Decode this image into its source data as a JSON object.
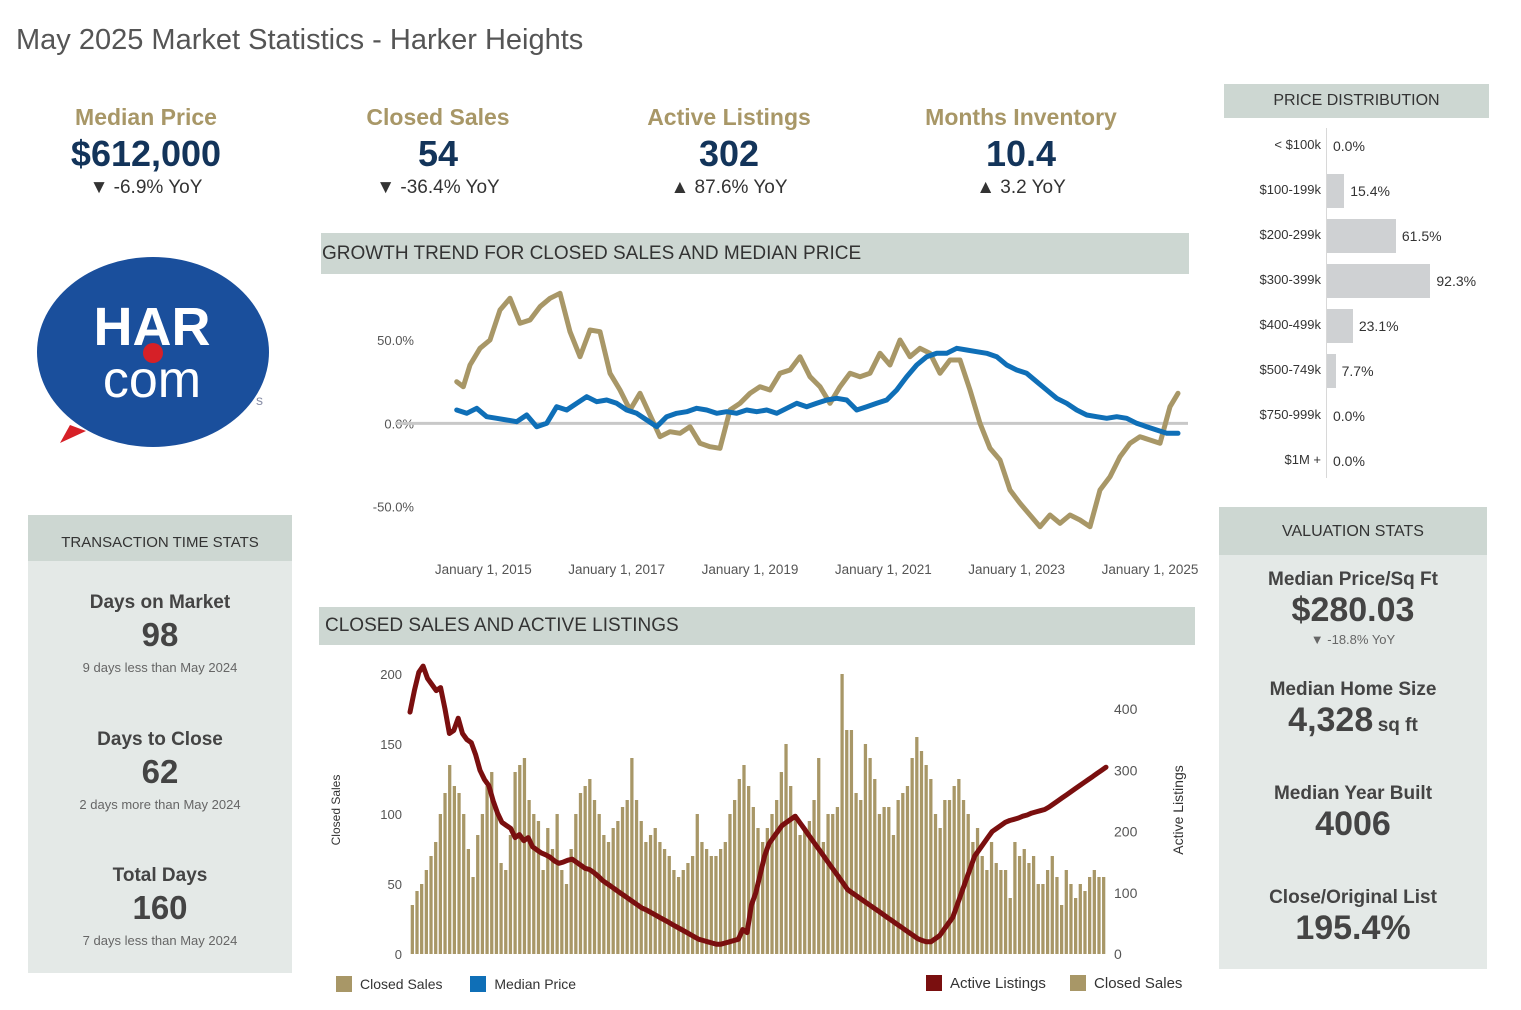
{
  "page_title": "May 2025 Market Statistics - Harker Heights",
  "kpis": [
    {
      "label": "Median Price",
      "value": "$612,000",
      "yoy": "▼ -6.9% YoY"
    },
    {
      "label": "Closed Sales",
      "value": "54",
      "yoy": "▼ -36.4% YoY"
    },
    {
      "label": "Active Listings",
      "value": "302",
      "yoy": "▲ 87.6% YoY"
    },
    {
      "label": "Months Inventory",
      "value": "10.4",
      "yoy": "▲ 3.2 YoY"
    }
  ],
  "logo": {
    "text_top": "HAR",
    "text_bottom": "com",
    "colors": {
      "circle": "#1a4f9c",
      "dot": "#d62027",
      "text": "#ffffff"
    }
  },
  "transaction": {
    "header": "TRANSACTION TIME STATS",
    "items": [
      {
        "label": "Days on Market",
        "value": "98",
        "sub": "9 days less than May 2024"
      },
      {
        "label": "Days to Close",
        "value": "62",
        "sub": "2 days more than May 2024"
      },
      {
        "label": "Total Days",
        "value": "160",
        "sub": "7 days less than May 2024"
      }
    ]
  },
  "price_distribution": {
    "header": "PRICE DISTRIBUTION",
    "rows": [
      {
        "label": "< $100k",
        "pct": "0.0%",
        "value": 0.0
      },
      {
        "label": "$100-199k",
        "pct": "15.4%",
        "value": 15.4
      },
      {
        "label": "$200-299k",
        "pct": "61.5%",
        "value": 61.5
      },
      {
        "label": "$300-399k",
        "pct": "92.3%",
        "value": 92.3
      },
      {
        "label": "$400-499k",
        "pct": "23.1%",
        "value": 23.1
      },
      {
        "label": "$500-749k",
        "pct": "7.7%",
        "value": 7.7
      },
      {
        "label": "$750-999k",
        "pct": "0.0%",
        "value": 0.0
      },
      {
        "label": "$1M +",
        "pct": "0.0%",
        "value": 0.0
      }
    ]
  },
  "valuation": {
    "header": "VALUATION STATS",
    "price_sqft_label": "Median Price/Sq Ft",
    "price_sqft_value": "$280.03",
    "price_sqft_yoy": "▼ -18.8% YoY",
    "home_size_label": "Median Home Size",
    "home_size_value": "4,328",
    "home_size_unit": "sq ft",
    "year_built_label": "Median Year Built",
    "year_built_value": "4006",
    "close_list_label": "Close/Original List",
    "close_list_value": "195.4%"
  },
  "chart_data": [
    {
      "type": "line",
      "title": "GROWTH TREND FOR CLOSED SALES AND MEDIAN PRICE",
      "x_tick_labels": [
        "January 1, 2015",
        "January 1, 2017",
        "January 1, 2019",
        "January 1, 2021",
        "January 1, 2023",
        "January 1, 2025"
      ],
      "y_tick_labels": [
        "50.0%",
        "0.0%",
        "-50.0%"
      ],
      "y_ticks": [
        50,
        0,
        -50
      ],
      "ylim": [
        -70,
        80
      ],
      "xlim": [
        2013.9,
        2025.6
      ],
      "legend": [
        {
          "name": "Closed Sales",
          "color": "#a89767"
        },
        {
          "name": "Median Price",
          "color": "#0f6fb7"
        }
      ],
      "series": [
        {
          "name": "Closed Sales",
          "color": "#a89767",
          "x": [
            2014.6,
            2014.7,
            2014.8,
            2014.95,
            2015.1,
            2015.25,
            2015.4,
            2015.55,
            2015.7,
            2015.85,
            2016.0,
            2016.15,
            2016.3,
            2016.45,
            2016.6,
            2016.75,
            2016.9,
            2017.05,
            2017.2,
            2017.35,
            2017.5,
            2017.65,
            2017.8,
            2017.95,
            2018.1,
            2018.25,
            2018.4,
            2018.55,
            2018.7,
            2018.85,
            2019.0,
            2019.15,
            2019.3,
            2019.45,
            2019.6,
            2019.75,
            2019.9,
            2020.05,
            2020.2,
            2020.35,
            2020.5,
            2020.65,
            2020.8,
            2020.95,
            2021.1,
            2021.25,
            2021.4,
            2021.55,
            2021.7,
            2021.85,
            2022.0,
            2022.15,
            2022.3,
            2022.45,
            2022.6,
            2022.75,
            2022.9,
            2023.05,
            2023.2,
            2023.35,
            2023.5,
            2023.65,
            2023.8,
            2023.95,
            2024.1,
            2024.25,
            2024.4,
            2024.55,
            2024.7,
            2024.85,
            2025.0,
            2025.15,
            2025.3,
            2025.42
          ],
          "y": [
            25,
            22,
            35,
            45,
            50,
            68,
            75,
            60,
            62,
            70,
            75,
            78,
            55,
            40,
            56,
            55,
            30,
            20,
            8,
            18,
            5,
            -8,
            -5,
            -6,
            -2,
            -12,
            -14,
            -15,
            8,
            12,
            18,
            22,
            20,
            30,
            32,
            40,
            28,
            22,
            12,
            22,
            30,
            28,
            30,
            42,
            35,
            50,
            40,
            45,
            42,
            30,
            38,
            38,
            20,
            0,
            -15,
            -22,
            -40,
            -48,
            -55,
            -62,
            -55,
            -60,
            -55,
            -58,
            -62,
            -40,
            -32,
            -20,
            -12,
            -8,
            -10,
            -12,
            10,
            18
          ]
        },
        {
          "name": "Median Price",
          "color": "#0f6fb7",
          "x": [
            2014.6,
            2014.75,
            2014.9,
            2015.05,
            2015.2,
            2015.35,
            2015.5,
            2015.65,
            2015.8,
            2015.95,
            2016.1,
            2016.25,
            2016.4,
            2016.55,
            2016.7,
            2016.85,
            2017.0,
            2017.15,
            2017.3,
            2017.45,
            2017.6,
            2017.75,
            2017.9,
            2018.05,
            2018.2,
            2018.35,
            2018.5,
            2018.65,
            2018.8,
            2018.95,
            2019.1,
            2019.25,
            2019.4,
            2019.55,
            2019.7,
            2019.85,
            2020.0,
            2020.15,
            2020.3,
            2020.45,
            2020.6,
            2020.75,
            2020.9,
            2021.05,
            2021.2,
            2021.35,
            2021.5,
            2021.65,
            2021.8,
            2021.95,
            2022.1,
            2022.25,
            2022.4,
            2022.55,
            2022.7,
            2022.85,
            2023.0,
            2023.15,
            2023.3,
            2023.45,
            2023.6,
            2023.75,
            2023.9,
            2024.05,
            2024.2,
            2024.35,
            2024.5,
            2024.65,
            2024.8,
            2024.95,
            2025.1,
            2025.25,
            2025.42
          ],
          "y": [
            8,
            6,
            9,
            4,
            3,
            2,
            1,
            5,
            -2,
            0,
            10,
            8,
            12,
            16,
            13,
            14,
            12,
            8,
            6,
            2,
            -2,
            4,
            6,
            7,
            9,
            8,
            6,
            7,
            6,
            8,
            7,
            8,
            6,
            9,
            12,
            10,
            12,
            14,
            15,
            14,
            8,
            10,
            12,
            14,
            20,
            28,
            35,
            40,
            42,
            42,
            45,
            44,
            43,
            42,
            40,
            35,
            32,
            30,
            25,
            20,
            15,
            12,
            8,
            5,
            4,
            3,
            4,
            3,
            0,
            -2,
            -4,
            -6,
            -6
          ]
        }
      ]
    },
    {
      "type": "bar",
      "title": "CLOSED SALES AND ACTIVE LISTINGS",
      "ylabel": "Closed Sales",
      "y2label": "Active Listings",
      "y_tick_labels": [
        "200",
        "150",
        "100",
        "50",
        "0"
      ],
      "y_ticks": [
        200,
        150,
        100,
        50,
        0
      ],
      "y2_tick_labels": [
        "400",
        "300",
        "200",
        "100",
        "0"
      ],
      "y2_ticks": [
        400,
        300,
        200,
        100,
        0
      ],
      "ylim": [
        0,
        210
      ],
      "y2lim": [
        0,
        480
      ],
      "legend": [
        {
          "name": "Active Listings",
          "color": "#7a0f0f"
        },
        {
          "name": "Closed Sales",
          "color": "#a89767"
        }
      ],
      "series": [
        {
          "name": "Closed Sales",
          "type": "bar",
          "color": "#a89767",
          "values": [
            35,
            45,
            50,
            60,
            70,
            80,
            100,
            115,
            135,
            120,
            115,
            100,
            75,
            55,
            85,
            100,
            120,
            130,
            105,
            65,
            60,
            85,
            130,
            135,
            140,
            110,
            100,
            95,
            60,
            90,
            75,
            100,
            60,
            50,
            75,
            100,
            115,
            120,
            125,
            110,
            100,
            85,
            80,
            90,
            95,
            105,
            110,
            140,
            110,
            95,
            80,
            85,
            90,
            80,
            75,
            70,
            60,
            55,
            60,
            65,
            70,
            100,
            80,
            75,
            70,
            70,
            75,
            80,
            100,
            110,
            125,
            135,
            120,
            105,
            90,
            80,
            90,
            100,
            110,
            130,
            150,
            120,
            100,
            85,
            90,
            95,
            110,
            140,
            80,
            100,
            100,
            105,
            200,
            160,
            160,
            115,
            110,
            150,
            140,
            125,
            100,
            105,
            105,
            85,
            110,
            115,
            120,
            140,
            155,
            145,
            135,
            125,
            100,
            90,
            110,
            110,
            120,
            125,
            110,
            100,
            80,
            90,
            70,
            60,
            80,
            65,
            60,
            60,
            40,
            80,
            70,
            75,
            65,
            70,
            50,
            50,
            60,
            70,
            55,
            35,
            60,
            50,
            40,
            50,
            45,
            55,
            60,
            55,
            55
          ]
        },
        {
          "name": "Active Listings",
          "type": "line",
          "color": "#7a0f0f",
          "values": [
            395,
            430,
            460,
            470,
            450,
            440,
            430,
            435,
            400,
            360,
            365,
            385,
            360,
            350,
            345,
            325,
            300,
            285,
            275,
            250,
            230,
            215,
            210,
            205,
            190,
            195,
            185,
            190,
            175,
            170,
            165,
            162,
            158,
            152,
            148,
            150,
            153,
            155,
            150,
            145,
            140,
            138,
            133,
            127,
            120,
            115,
            110,
            105,
            100,
            95,
            90,
            85,
            80,
            75,
            72,
            68,
            64,
            60,
            56,
            52,
            48,
            44,
            40,
            36,
            32,
            28,
            24,
            22,
            20,
            18,
            16,
            16,
            18,
            20,
            22,
            24,
            40,
            35,
            80,
            100,
            130,
            160,
            180,
            190,
            200,
            210,
            215,
            220,
            225,
            215,
            205,
            195,
            185,
            175,
            165,
            155,
            145,
            135,
            125,
            115,
            105,
            100,
            95,
            90,
            85,
            80,
            75,
            70,
            65,
            60,
            55,
            50,
            45,
            40,
            35,
            30,
            25,
            22,
            20,
            20,
            25,
            30,
            40,
            50,
            60,
            80,
            100,
            120,
            140,
            160,
            170,
            180,
            190,
            200,
            205,
            210,
            215,
            218,
            220,
            222,
            225,
            227,
            230,
            232,
            234,
            236,
            240,
            245,
            250,
            255,
            260,
            265,
            270,
            275,
            280,
            285,
            290,
            295,
            300,
            305
          ]
        }
      ]
    }
  ]
}
